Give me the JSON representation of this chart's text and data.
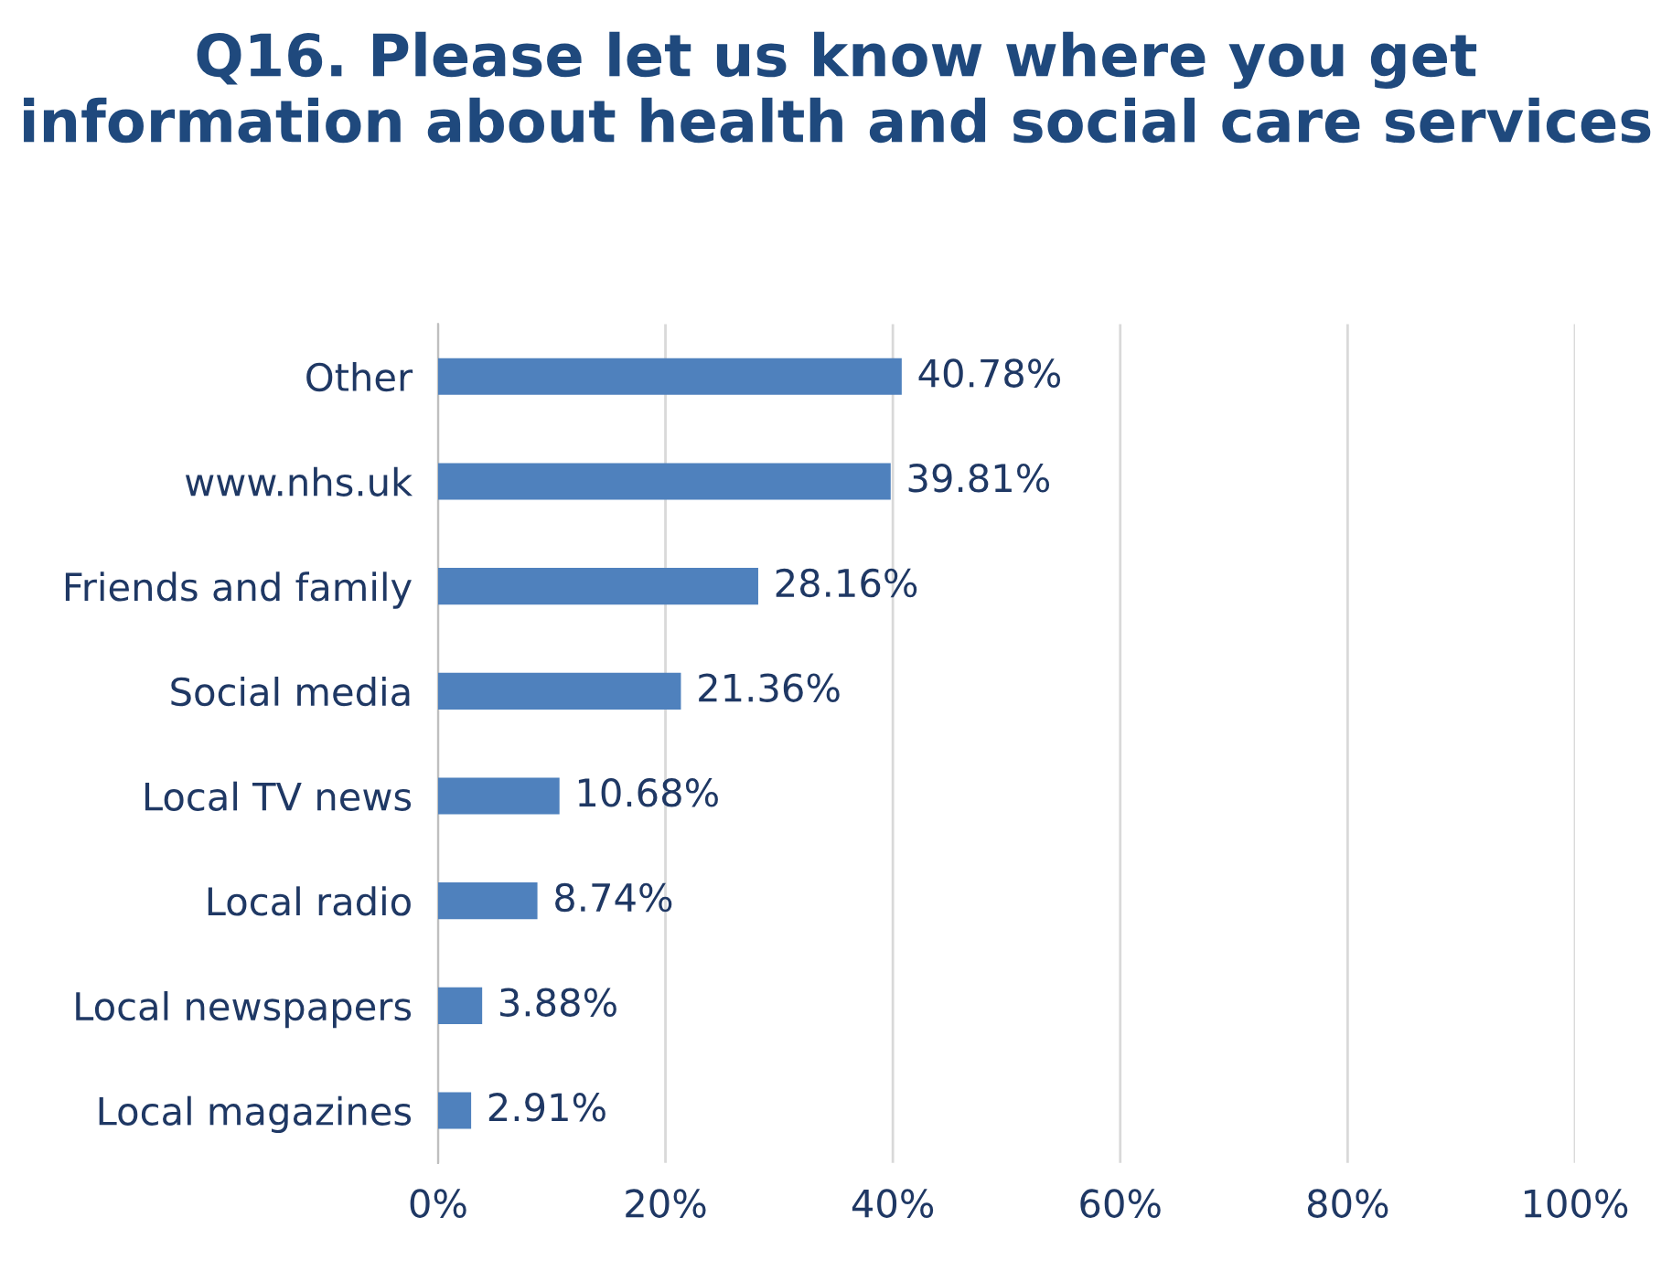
{
  "chart_data": {
    "type": "bar",
    "orientation": "horizontal",
    "title": "Q16. Please let us know where you get information about health and social care services",
    "categories": [
      "Other",
      "www.nhs.uk",
      "Friends and family",
      "Social media",
      "Local TV news",
      "Local radio",
      "Local newspapers",
      "Local magazines"
    ],
    "values": [
      40.78,
      39.81,
      28.16,
      21.36,
      10.68,
      8.74,
      3.88,
      2.91
    ],
    "value_labels": [
      "40.78%",
      "39.81%",
      "28.16%",
      "21.36%",
      "10.68%",
      "8.74%",
      "3.88%",
      "2.91%"
    ],
    "color": "#4f81bd",
    "xlim": [
      0,
      100
    ],
    "xticks": [
      {
        "value": 0,
        "label": "0%"
      },
      {
        "value": 20,
        "label": "20%"
      },
      {
        "value": 40,
        "label": "40%"
      },
      {
        "value": 60,
        "label": "60%"
      },
      {
        "value": 80,
        "label": "80%"
      },
      {
        "value": 100,
        "label": "100%"
      }
    ],
    "grid": "x",
    "legend": false
  }
}
